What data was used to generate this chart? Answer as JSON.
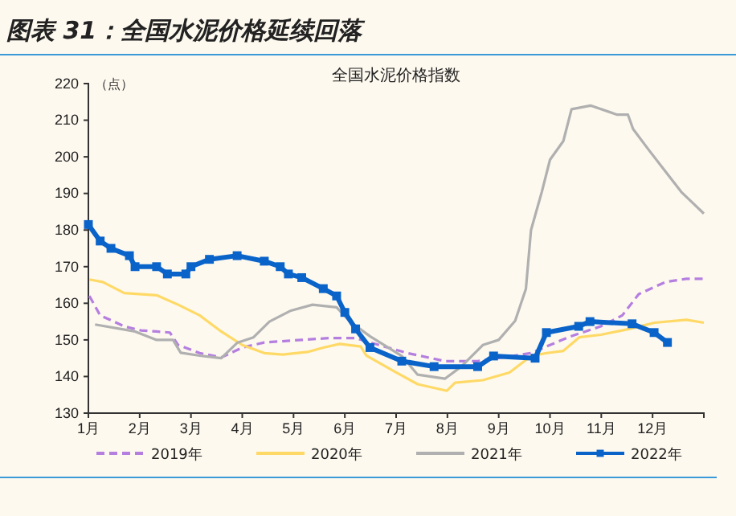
{
  "chart_data": {
    "type": "line",
    "title": "图表 31：全国水泥价格延续回落",
    "subtitle": "全国水泥价格指数",
    "ylabel": "（点）",
    "xlim": [
      1,
      13
    ],
    "xticks": [
      {
        "value": 1,
        "label": "1月"
      },
      {
        "value": 2,
        "label": "2月"
      },
      {
        "value": 3,
        "label": "3月"
      },
      {
        "value": 4,
        "label": "4月"
      },
      {
        "value": 5,
        "label": "5月"
      },
      {
        "value": 6,
        "label": "6月"
      },
      {
        "value": 7,
        "label": "7月"
      },
      {
        "value": 8,
        "label": "8月"
      },
      {
        "value": 9,
        "label": "9月"
      },
      {
        "value": 10,
        "label": "10月"
      },
      {
        "value": 11,
        "label": "11月"
      },
      {
        "value": 12,
        "label": "12月"
      },
      {
        "value": 13,
        "label": null
      }
    ],
    "ylim": [
      130,
      220
    ],
    "yticks": [
      130,
      140,
      150,
      160,
      170,
      180,
      190,
      200,
      210,
      220
    ],
    "grid": false,
    "legend": "bottom",
    "series": [
      {
        "name": "2019年",
        "color": "#b57fe0",
        "line_style": "dashed",
        "marker": "none",
        "x": [
          1.02,
          1.23,
          1.7,
          2.02,
          2.33,
          2.59,
          2.75,
          3.17,
          3.59,
          4.0,
          4.43,
          5.16,
          5.69,
          6.21,
          6.49,
          7.22,
          7.95,
          8.59,
          9.63,
          10.37,
          10.99,
          11.41,
          11.73,
          12.25,
          12.66,
          13.0
        ],
        "values": [
          162,
          156.7,
          153.7,
          152.6,
          152.3,
          152,
          148.6,
          146.4,
          145.2,
          147.9,
          149.3,
          150,
          150.5,
          150.5,
          149.3,
          146.4,
          144.2,
          144.2,
          146.4,
          150.8,
          153.7,
          156.7,
          162.5,
          165.8,
          166.7,
          166.7
        ]
      },
      {
        "name": "2020年",
        "color": "#ffd966",
        "line_style": "solid",
        "marker": "none",
        "x": [
          1.02,
          1.28,
          1.7,
          2.33,
          2.75,
          3.17,
          3.59,
          4.0,
          4.43,
          4.79,
          5.27,
          5.58,
          5.9,
          6.31,
          6.42,
          7.0,
          7.42,
          7.99,
          8.15,
          8.69,
          9.21,
          9.63,
          9.94,
          10.26,
          10.57,
          10.99,
          11.52,
          12.04,
          12.66,
          13.0
        ],
        "values": [
          166.5,
          165.8,
          162.8,
          162.2,
          159.6,
          156.7,
          152.3,
          148.6,
          146.4,
          146,
          146.7,
          147.9,
          148.9,
          148.2,
          145.7,
          141.1,
          137.9,
          136.1,
          138.3,
          139,
          141.1,
          145.6,
          146.4,
          147,
          150.7,
          151.4,
          152.9,
          154.7,
          155.5,
          154.7
        ]
      },
      {
        "name": "2021年",
        "color": "#b0b0b0",
        "line_style": "solid",
        "marker": "none",
        "x": [
          1.13,
          1.91,
          2.33,
          2.65,
          2.8,
          3.17,
          3.59,
          3.9,
          4.22,
          4.53,
          4.95,
          5.37,
          5.84,
          6.1,
          6.49,
          7.11,
          7.42,
          7.95,
          8.27,
          8.69,
          9.0,
          9.32,
          9.53,
          9.63,
          9.84,
          10.0,
          10.26,
          10.42,
          10.79,
          11.31,
          11.52,
          11.62,
          11.93,
          12.25,
          12.56,
          13.0
        ],
        "values": [
          154.2,
          152.3,
          150,
          150,
          146.5,
          145.7,
          145,
          149.2,
          150.7,
          155,
          158,
          159.6,
          158.9,
          155,
          151,
          145.6,
          140.5,
          139.4,
          142.7,
          148.6,
          150,
          155.2,
          163.9,
          180,
          190.4,
          199.2,
          204.3,
          213,
          214,
          211.5,
          211.5,
          207.6,
          201.8,
          196,
          190.4,
          184.5
        ]
      },
      {
        "name": "2022年",
        "color": "#0a63c9",
        "line_style": "solid",
        "marker": "square",
        "x": [
          1.0,
          1.23,
          1.44,
          1.8,
          1.91,
          2.33,
          2.54,
          2.9,
          3.0,
          3.36,
          3.9,
          4.43,
          4.74,
          4.9,
          5.16,
          5.58,
          5.84,
          6.0,
          6.21,
          6.49,
          7.11,
          7.74,
          8.59,
          8.9,
          9.71,
          9.93,
          10.56,
          10.78,
          11.6,
          12.03,
          12.29
        ],
        "values": [
          181.5,
          177,
          175,
          173,
          170,
          170,
          168,
          168,
          170,
          172,
          173,
          171.5,
          170,
          168,
          167,
          164,
          162,
          157.5,
          153,
          147.9,
          144.2,
          142.7,
          142.7,
          145.6,
          145,
          152,
          153.7,
          155,
          154.4,
          152,
          149.3
        ]
      }
    ]
  }
}
